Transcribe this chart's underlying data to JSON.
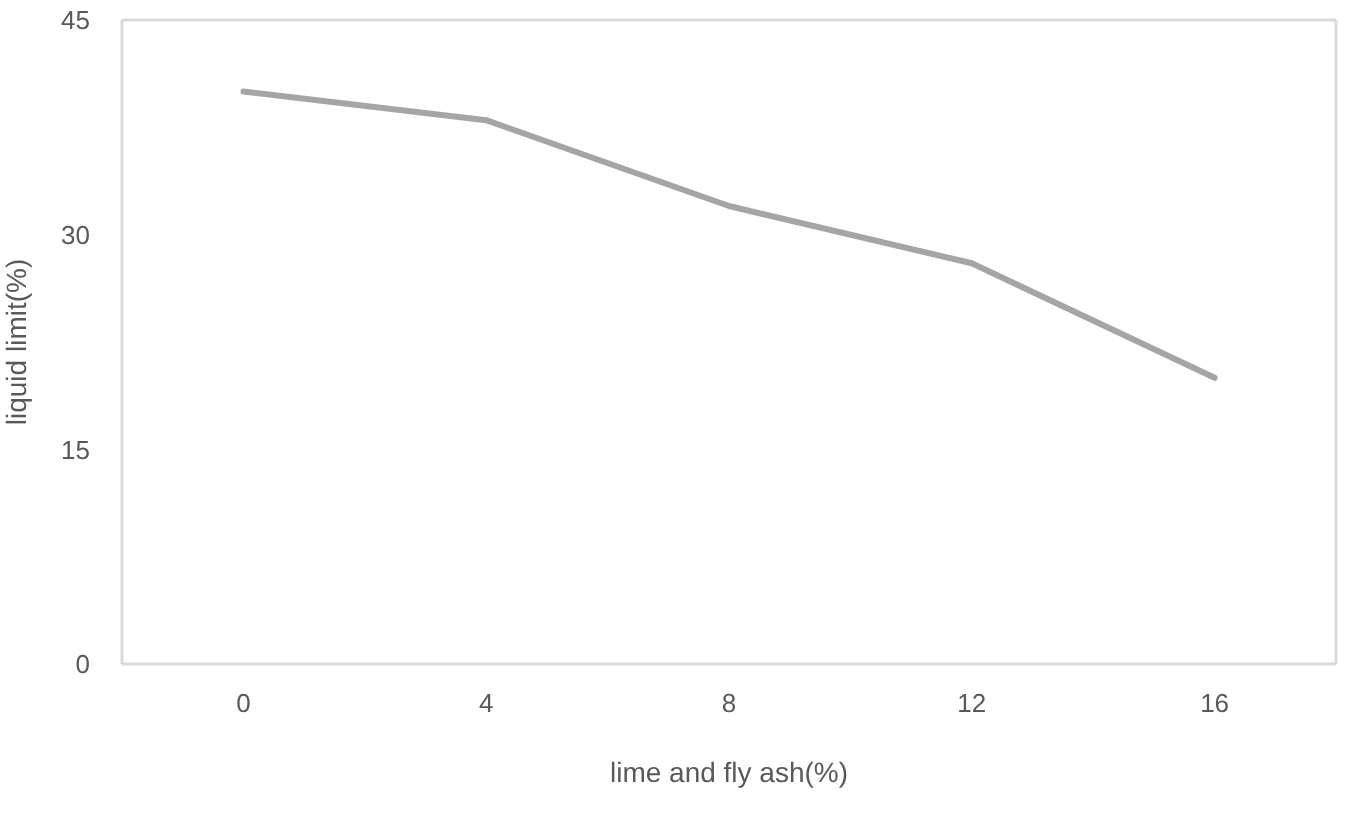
{
  "chart_data": {
    "type": "line",
    "xlabel": "lime and fly ash(%)",
    "ylabel": "liquid limit(%)",
    "categories": [
      "0",
      "4",
      "8",
      "12",
      "16"
    ],
    "series": [
      {
        "color": "#a5a5a5",
        "values": [
          40,
          38,
          32,
          28,
          20
        ]
      }
    ],
    "ylim": [
      0,
      45
    ],
    "yticks": [
      0,
      15,
      30,
      45
    ],
    "marker": "none",
    "line_style": "solid"
  }
}
